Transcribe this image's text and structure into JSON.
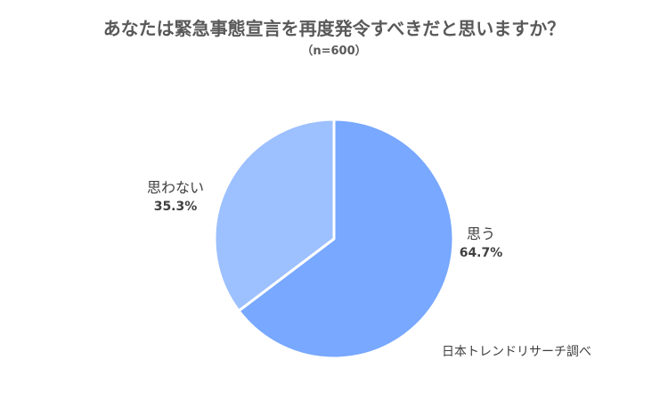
{
  "chart_data": {
    "type": "pie",
    "title": "あなたは緊急事態宣言を再度発令すべきだと思いますか？",
    "subtitle": "（n=600）",
    "categories": [
      "思う",
      "思わない"
    ],
    "values": [
      64.7,
      35.3
    ],
    "value_labels": [
      "64.7%",
      "35.3%"
    ],
    "colors": [
      "#78A8FF",
      "#9DC0FF"
    ],
    "legend": "none",
    "source_note": "日本トレンドリサーチ調べ"
  }
}
